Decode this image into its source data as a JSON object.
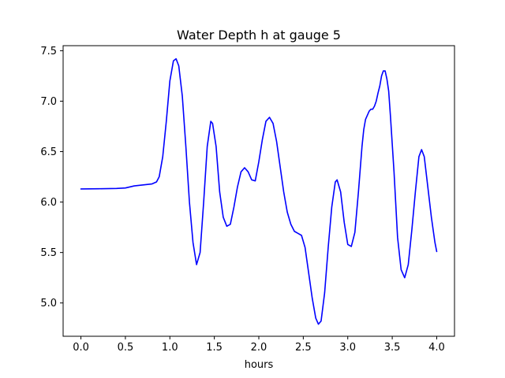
{
  "chart_data": {
    "type": "line",
    "title": "Water Depth h at gauge 5",
    "xlabel": "hours",
    "ylabel": "",
    "xlim": [
      -0.2,
      4.2
    ],
    "ylim": [
      4.67,
      7.55
    ],
    "xticks": [
      0.0,
      0.5,
      1.0,
      1.5,
      2.0,
      2.5,
      3.0,
      3.5,
      4.0
    ],
    "xtick_labels": [
      "0.0",
      "0.5",
      "1.0",
      "1.5",
      "2.0",
      "2.5",
      "3.0",
      "3.5",
      "4.0"
    ],
    "yticks": [
      5.0,
      5.5,
      6.0,
      6.5,
      7.0,
      7.5
    ],
    "ytick_labels": [
      "5.0",
      "5.5",
      "6.0",
      "6.5",
      "7.0",
      "7.5"
    ],
    "grid": false,
    "legend": "none",
    "series": [
      {
        "color": "#0000ff",
        "x": [
          0.0,
          0.2,
          0.4,
          0.5,
          0.6,
          0.7,
          0.8,
          0.85,
          0.88,
          0.92,
          0.96,
          1.0,
          1.04,
          1.07,
          1.1,
          1.14,
          1.18,
          1.22,
          1.26,
          1.3,
          1.34,
          1.38,
          1.42,
          1.46,
          1.48,
          1.52,
          1.56,
          1.6,
          1.64,
          1.68,
          1.72,
          1.76,
          1.8,
          1.84,
          1.88,
          1.92,
          1.96,
          2.0,
          2.04,
          2.08,
          2.12,
          2.16,
          2.2,
          2.24,
          2.28,
          2.32,
          2.36,
          2.4,
          2.44,
          2.48,
          2.52,
          2.56,
          2.6,
          2.64,
          2.67,
          2.7,
          2.74,
          2.78,
          2.82,
          2.86,
          2.88,
          2.92,
          2.96,
          3.0,
          3.04,
          3.08,
          3.12,
          3.16,
          3.18,
          3.2,
          3.22,
          3.24,
          3.26,
          3.28,
          3.3,
          3.32,
          3.34,
          3.36,
          3.38,
          3.4,
          3.42,
          3.44,
          3.46,
          3.48,
          3.52,
          3.56,
          3.6,
          3.64,
          3.68,
          3.72,
          3.76,
          3.8,
          3.83,
          3.86,
          3.9,
          3.94,
          3.98,
          4.0
        ],
        "y": [
          6.13,
          6.132,
          6.135,
          6.14,
          6.16,
          6.17,
          6.18,
          6.2,
          6.25,
          6.45,
          6.8,
          7.2,
          7.4,
          7.42,
          7.35,
          7.05,
          6.55,
          6.0,
          5.6,
          5.38,
          5.5,
          6.0,
          6.55,
          6.8,
          6.78,
          6.55,
          6.1,
          5.85,
          5.76,
          5.78,
          5.95,
          6.15,
          6.3,
          6.34,
          6.3,
          6.22,
          6.21,
          6.4,
          6.62,
          6.8,
          6.84,
          6.78,
          6.6,
          6.35,
          6.1,
          5.9,
          5.78,
          5.71,
          5.69,
          5.67,
          5.55,
          5.3,
          5.05,
          4.85,
          4.79,
          4.82,
          5.1,
          5.55,
          5.95,
          6.2,
          6.22,
          6.1,
          5.8,
          5.58,
          5.56,
          5.7,
          6.1,
          6.55,
          6.72,
          6.82,
          6.86,
          6.9,
          6.92,
          6.92,
          6.95,
          7.0,
          7.08,
          7.15,
          7.25,
          7.3,
          7.3,
          7.22,
          7.1,
          6.85,
          6.3,
          5.65,
          5.33,
          5.25,
          5.38,
          5.72,
          6.1,
          6.45,
          6.52,
          6.45,
          6.15,
          5.85,
          5.6,
          5.51
        ]
      }
    ]
  }
}
